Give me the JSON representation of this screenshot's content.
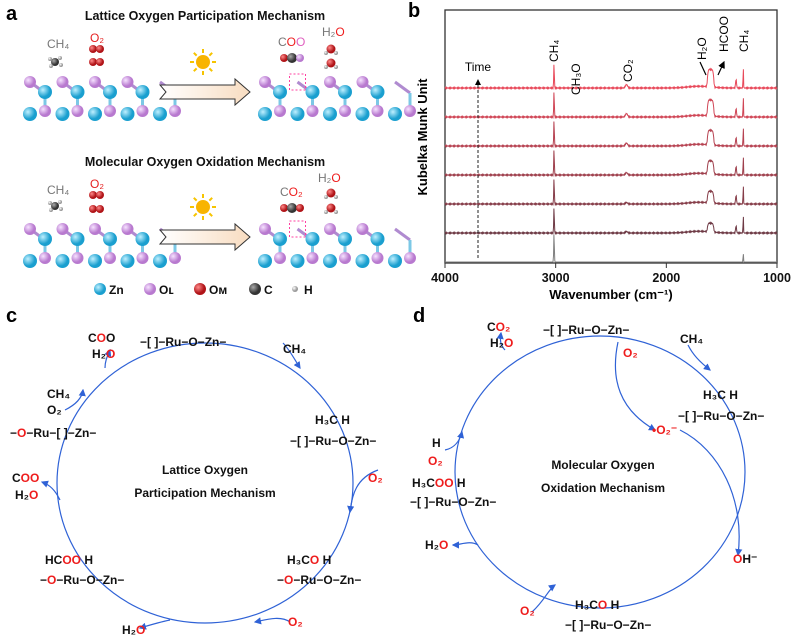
{
  "colors": {
    "zn": "#29b6e0",
    "ol": "#d49be6",
    "om": "#d8242a",
    "c": "#555555",
    "h": "#dddddd",
    "cycle": "#2f62d6",
    "red": "#ee1c1c",
    "trace_top": "#e8495a",
    "trace_bottom": "#6e3a45",
    "trace_base": "#808080"
  },
  "panel_a": {
    "letter": "a",
    "lattice_title": "Lattice Oxygen Participation Mechanism",
    "molecular_title": "Molecular Oxygen Oxidation Mechanism",
    "top_reactants": {
      "ch4": "CH₄",
      "o2": "O₂"
    },
    "top_products": {
      "coo": [
        [
          "C",
          "g"
        ],
        [
          "O",
          "r"
        ],
        [
          "O",
          "p"
        ]
      ],
      "h2o": [
        [
          "H₂",
          "g"
        ],
        [
          "O",
          "r"
        ]
      ]
    },
    "bottom_reactants": {
      "ch4": "CH₄",
      "o2": "O₂"
    },
    "bottom_products": {
      "co2": [
        [
          "C",
          "g"
        ],
        [
          "O₂",
          "r"
        ]
      ],
      "h2o": [
        [
          "H₂",
          "g"
        ],
        [
          "O",
          "r"
        ]
      ]
    },
    "icons": [
      "sun-icon",
      "process-arrow-icon"
    ],
    "legend": [
      {
        "label": "Zn",
        "color": "#29b6e0"
      },
      {
        "label": "Oʟ",
        "color": "#d49be6"
      },
      {
        "label": "Oᴍ",
        "color": "#d8242a"
      },
      {
        "label": "C",
        "color": "#555555"
      },
      {
        "label": "H",
        "color": "#dddddd"
      }
    ]
  },
  "panel_b": {
    "letter": "b",
    "time_label": "Time",
    "peak_labels": [
      "CH₄",
      "CH₃O",
      "CO₂",
      "H₂O",
      "HCOO",
      "CH₄"
    ]
  },
  "chart_data": {
    "type": "line",
    "xlabel": "Wavenumber (cm⁻¹)",
    "ylabel": "Kubelka Munk Unit",
    "xlim": [
      4000,
      1000
    ],
    "x_reversed": true,
    "xticks": [
      "4000",
      "3000",
      "2000",
      "1000"
    ],
    "yticks": [],
    "grid": false,
    "legend": "none",
    "feature_positions_cm-1": [
      3015,
      2360,
      1600,
      1370,
      1305
    ],
    "series": [
      {
        "offset": 0,
        "peak_amplitudes": [
          1.0,
          0.0,
          0.0,
          0.0,
          0.3
        ]
      },
      {
        "offset": 1,
        "peak_amplitudes": [
          0.9,
          0.05,
          0.3,
          0.25,
          0.6
        ]
      },
      {
        "offset": 2,
        "peak_amplitudes": [
          0.9,
          0.05,
          0.4,
          0.3,
          0.65
        ]
      },
      {
        "offset": 3,
        "peak_amplitudes": [
          0.9,
          0.08,
          0.45,
          0.3,
          0.65
        ]
      },
      {
        "offset": 4,
        "peak_amplitudes": [
          0.9,
          0.1,
          0.5,
          0.3,
          0.65
        ]
      },
      {
        "offset": 5,
        "peak_amplitudes": [
          0.9,
          0.12,
          0.55,
          0.3,
          0.7
        ]
      },
      {
        "offset": 6,
        "peak_amplitudes": [
          0.85,
          0.12,
          0.6,
          0.3,
          0.7
        ]
      }
    ]
  },
  "panel_c": {
    "letter": "c",
    "center": [
      "Lattice Oxygen",
      "Participation Mechanism"
    ],
    "labels": {
      "top_node": [
        [
          "−[ ]−Ru−O−Zn−",
          "k"
        ]
      ],
      "ch4_in": [
        [
          "CH₄",
          "k"
        ]
      ],
      "right_top": [
        [
          "H₃C      H",
          "k"
        ]
      ],
      "right_node": [
        [
          "−[ ]−Ru−O−Zn−",
          "k"
        ]
      ],
      "o2_right": [
        [
          "O₂",
          "r"
        ]
      ],
      "br_top": [
        [
          "H₃C",
          "k"
        ],
        [
          "O",
          "r"
        ],
        [
          "     H",
          "k"
        ]
      ],
      "br_node": [
        [
          "−",
          "k"
        ],
        [
          "O",
          "r"
        ],
        [
          "−Ru−O−Zn−",
          "k"
        ]
      ],
      "o2_bottom": [
        [
          "O₂",
          "r"
        ]
      ],
      "h2o_bottom": [
        [
          "H₂",
          "k"
        ],
        [
          "O",
          "r"
        ]
      ],
      "bl_top": [
        [
          "HC",
          "k"
        ],
        [
          "OO",
          "r"
        ],
        [
          "    H",
          "k"
        ]
      ],
      "bl_node": [
        [
          "−",
          "k"
        ],
        [
          "O",
          "r"
        ],
        [
          "−Ru−O−Zn−",
          "k"
        ]
      ],
      "coo_left": [
        [
          "C",
          "k"
        ],
        [
          "OO",
          "r"
        ]
      ],
      "h2o_left": [
        [
          "H₂",
          "k"
        ],
        [
          "O",
          "r"
        ]
      ],
      "left_node": [
        [
          "−",
          "k"
        ],
        [
          "O",
          "r"
        ],
        [
          "−Ru−[ ]−Zn−",
          "k"
        ]
      ],
      "ch4_left": [
        [
          "CH₄",
          "k"
        ]
      ],
      "o2_left": [
        [
          "O₂",
          "k"
        ]
      ],
      "coo_top": [
        [
          "C",
          "k"
        ],
        [
          "O",
          "r"
        ],
        [
          "O",
          "k"
        ]
      ],
      "h2o_top": [
        [
          "H₂",
          "k"
        ],
        [
          "O",
          "r"
        ]
      ]
    }
  },
  "panel_d": {
    "letter": "d",
    "center": [
      "Molecular Oxygen",
      "Oxidation Mechanism"
    ],
    "labels": {
      "top_node": [
        [
          "−[ ]−Ru−O−Zn−",
          "k"
        ]
      ],
      "co2_top": [
        [
          "C",
          "k"
        ],
        [
          "O₂",
          "r"
        ]
      ],
      "h2o_top": [
        [
          "H₂",
          "k"
        ],
        [
          "O",
          "r"
        ]
      ],
      "ch4_in": [
        [
          "CH₄",
          "k"
        ]
      ],
      "o2_in": [
        [
          "O₂",
          "r"
        ]
      ],
      "right_top": [
        [
          "H₃C      H",
          "k"
        ]
      ],
      "right_node": [
        [
          "−[ ]−Ru−O−Zn−",
          "k"
        ]
      ],
      "superoxide": [
        [
          "•O₂⁻",
          "r"
        ]
      ],
      "oh": [
        [
          "O",
          "r"
        ],
        [
          "H⁻",
          "k"
        ]
      ],
      "bottom_top": [
        [
          "H₃C",
          "k"
        ],
        [
          "O",
          "r"
        ],
        [
          "     H",
          "k"
        ]
      ],
      "bottom_node": [
        [
          "−[ ]−Ru−O−Zn−",
          "k"
        ]
      ],
      "o2_bottom": [
        [
          "O₂",
          "r"
        ]
      ],
      "h2o_left": [
        [
          "H₂",
          "k"
        ],
        [
          "O",
          "r"
        ]
      ],
      "left_top": [
        [
          "H₃C",
          "k"
        ],
        [
          "OO",
          "r"
        ],
        [
          "    H",
          "k"
        ]
      ],
      "left_node": [
        [
          "−[ ]−Ru−O−Zn−",
          "k"
        ]
      ],
      "h_left": [
        [
          "H",
          "k"
        ]
      ],
      "o2_left": [
        [
          "O₂",
          "r"
        ]
      ]
    }
  }
}
